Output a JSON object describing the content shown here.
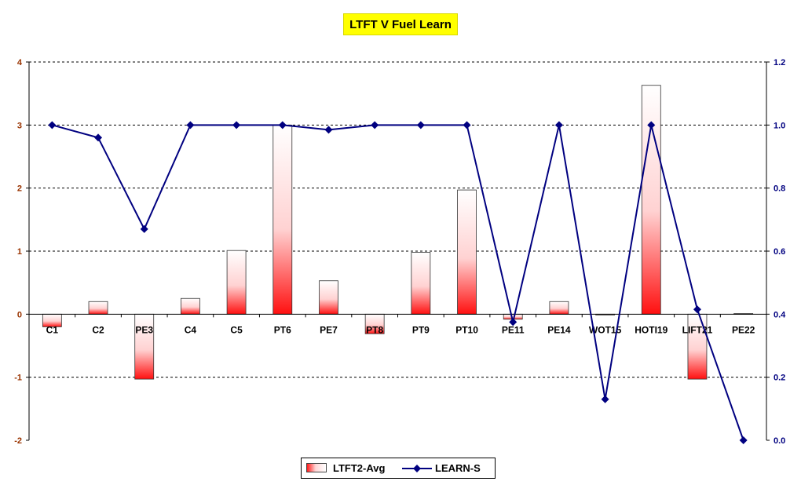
{
  "chart_data": {
    "type": "bar",
    "title": "LTFT V Fuel Learn",
    "categories": [
      "C1",
      "C2",
      "PE3",
      "C4",
      "C5",
      "PT6",
      "PE7",
      "PT8",
      "PT9",
      "PT10",
      "PE11",
      "PE14",
      "WOT15",
      "HOTI19",
      "LIFT21",
      "PE22"
    ],
    "series": [
      {
        "name": "LTFT2-Avg",
        "type": "bar",
        "axis": "left",
        "values": [
          -0.2,
          0.2,
          -1.03,
          0.25,
          1.01,
          3.0,
          0.53,
          -0.31,
          0.98,
          1.97,
          -0.08,
          0.2,
          -0.01,
          3.63,
          -1.03,
          0.01
        ]
      },
      {
        "name": "LEARN-S",
        "type": "line",
        "axis": "right",
        "values": [
          1.0,
          0.96,
          0.67,
          1.0,
          1.0,
          1.0,
          0.985,
          1.0,
          1.0,
          1.0,
          0.375,
          1.0,
          0.13,
          1.0,
          0.415,
          0.0
        ]
      }
    ],
    "y_left": {
      "min": -2,
      "max": 4,
      "ticks": [
        "-2",
        "-1",
        "0",
        "1",
        "2",
        "3",
        "4"
      ]
    },
    "y_right": {
      "min": 0.0,
      "max": 1.2,
      "ticks": [
        "0.0",
        "0.2",
        "0.4",
        "0.6",
        "0.8",
        "1.0",
        "1.2"
      ]
    },
    "grid": "horizontal dashed",
    "legend_position": "bottom",
    "colors": {
      "bar_top": "#ffffff",
      "bar_bottom": "#ff0000",
      "line": "#000080",
      "left_axis_text": "#993300",
      "right_axis_text": "#000080",
      "title_bg": "#ffff00"
    }
  }
}
